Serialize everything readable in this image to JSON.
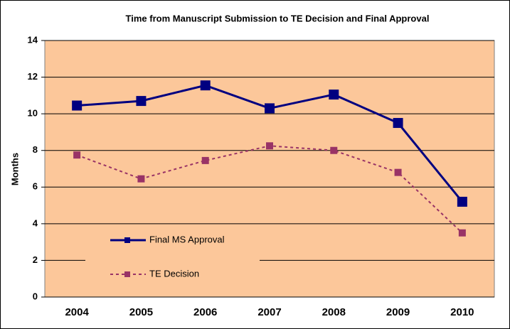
{
  "chart_data": {
    "type": "line",
    "title": "Time from Manuscript Submission to TE Decision and Final Approval",
    "ylabel": "Months",
    "categories": [
      "2004",
      "2005",
      "2006",
      "2007",
      "2008",
      "2009",
      "2010"
    ],
    "series": [
      {
        "name": "Final MS Approval",
        "color": "#000080",
        "dash": false,
        "values": [
          10.45,
          10.7,
          11.55,
          10.3,
          11.05,
          9.5,
          5.2
        ]
      },
      {
        "name": "TE Decision",
        "color": "#993366",
        "dash": true,
        "values": [
          7.75,
          6.45,
          7.45,
          8.25,
          8.0,
          6.8,
          3.5
        ]
      }
    ],
    "ylim": [
      0,
      14
    ],
    "yticks": [
      0,
      2,
      4,
      6,
      8,
      10,
      12,
      14
    ],
    "grid": true,
    "legend": "lower left",
    "plot_background": "#fcc79a"
  }
}
